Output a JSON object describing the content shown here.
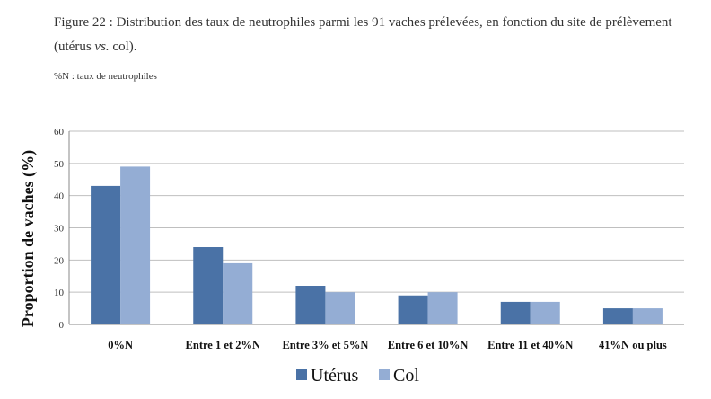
{
  "figure": {
    "caption_prefix": "Figure 22 : Distribution des taux de neutrophiles parmi les 91 vaches prélevées, en fonction du site de prélèvement (utérus ",
    "caption_vs": "vs.",
    "caption_suffix": " col).",
    "note": "%N : taux de neutrophiles"
  },
  "chart_data": {
    "type": "bar",
    "categories": [
      "0%N",
      "Entre 1 et 2%N",
      "Entre 3% et 5%N",
      "Entre 6 et 10%N",
      "Entre 11 et 40%N",
      "41%N ou plus"
    ],
    "series": [
      {
        "name": "Utérus",
        "values": [
          43,
          24,
          12,
          9,
          7,
          5
        ],
        "color": "#4A72A6"
      },
      {
        "name": "Col",
        "values": [
          49,
          19,
          10,
          10,
          7,
          5
        ],
        "color": "#94ADD4"
      }
    ],
    "ylabel": "Proportion de vaches (%)",
    "ylim": [
      0,
      60
    ],
    "yticks": [
      0,
      10,
      20,
      30,
      40,
      50,
      60
    ],
    "grid": true,
    "legend": "bottom"
  }
}
